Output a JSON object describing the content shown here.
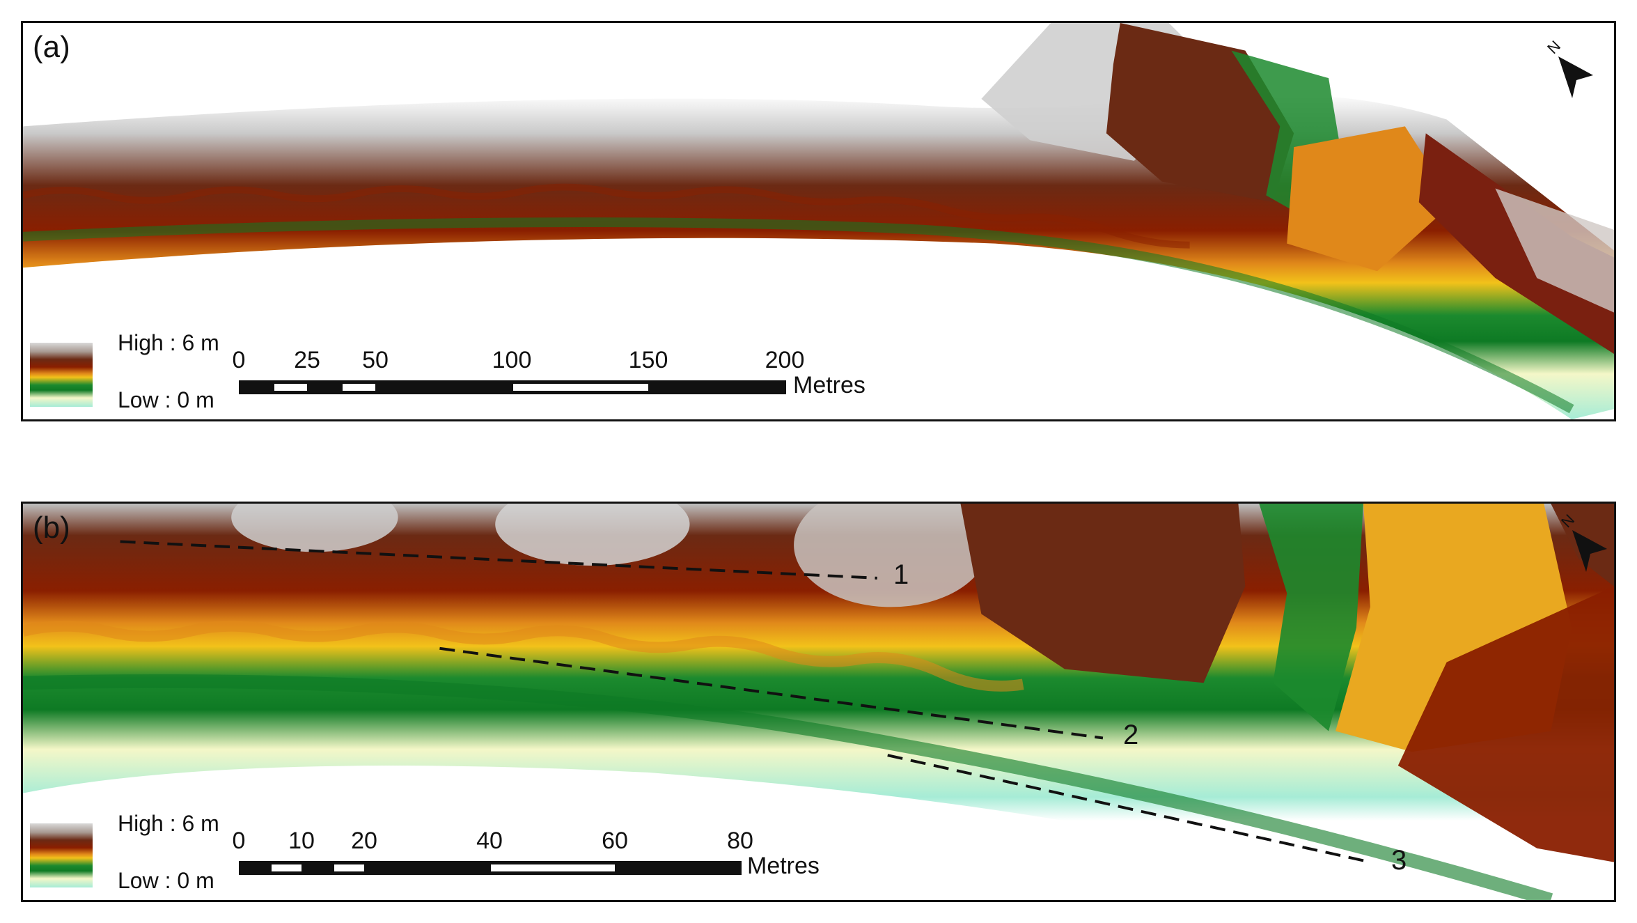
{
  "panels": [
    {
      "label": "(a)",
      "legend": {
        "high": "High : 6 m",
        "low": "Low : 0 m"
      },
      "scale": {
        "ticks": [
          "0",
          "25",
          "50",
          "100",
          "150",
          "200"
        ],
        "unit": "Metres"
      },
      "north": "N"
    },
    {
      "label": "(b)",
      "legend": {
        "high": "High : 6 m",
        "low": "Low : 0 m"
      },
      "scale": {
        "ticks": [
          "0",
          "10",
          "20",
          "40",
          "60",
          "80"
        ],
        "unit": "Metres"
      },
      "north": "N",
      "profiles": [
        "1",
        "2",
        "3"
      ]
    }
  ],
  "colors": {
    "high": "#d9d9d9",
    "dark_brown": "#6b2a14",
    "red_brown": "#8a1f00",
    "orange": "#e0881a",
    "yellow": "#f2c21a",
    "green": "#0e7a24",
    "light_yellow": "#f4f7c8",
    "low": "#a6ecd6"
  }
}
